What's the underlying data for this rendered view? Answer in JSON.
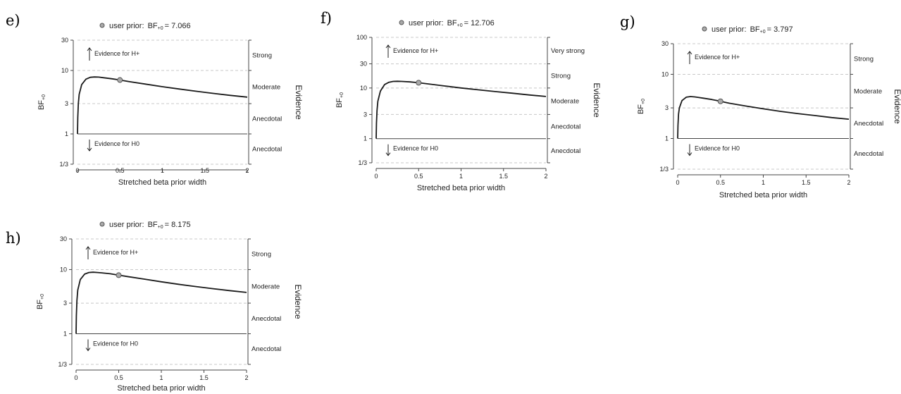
{
  "chart_data": [
    {
      "panel": "e)",
      "type": "line",
      "title_prefix": "user prior:",
      "title_bf": "BF",
      "title_sub": "+0",
      "title_value": "= 7.066",
      "xlabel": "Stretched beta prior width",
      "ylabel": "BF",
      "ylabel_sub": "+0",
      "right_axis_title": "Evidence",
      "xlim": [
        0,
        2
      ],
      "xticks": [
        "0",
        "0.5",
        "1",
        "1.5",
        "2"
      ],
      "ylim": [
        0.333,
        30
      ],
      "yscale": "log",
      "yticks": [
        "1/3",
        "1",
        "3",
        "10",
        "30"
      ],
      "ytick_values": [
        0.3333,
        1,
        3,
        10,
        30
      ],
      "gridlines": [
        0.3333,
        3,
        10,
        30
      ],
      "right_boundaries": [
        0.3333,
        1,
        3,
        10,
        30
      ],
      "right_labels": [
        {
          "text": "Strong",
          "lo": 10,
          "hi": 30
        },
        {
          "text": "Moderate",
          "lo": 3,
          "hi": 10
        },
        {
          "text": "Anecdotal",
          "lo": 1,
          "hi": 3
        },
        {
          "text": "Anecdotal",
          "lo": 0.3333,
          "hi": 1
        }
      ],
      "evidence_h1": "Evidence for H+",
      "evidence_h0": "Evidence for H0",
      "x": [
        0,
        0.003,
        0.01,
        0.02,
        0.05,
        0.1,
        0.15,
        0.2,
        0.25,
        0.3,
        0.4,
        0.5,
        0.6,
        0.8,
        1.0,
        1.2,
        1.4,
        1.6,
        1.8,
        2.0
      ],
      "y": [
        1,
        1.8,
        3.0,
        4.2,
        6.0,
        7.3,
        7.8,
        7.9,
        7.85,
        7.7,
        7.4,
        7.066,
        6.7,
        6.1,
        5.55,
        5.1,
        4.7,
        4.35,
        4.05,
        3.8
      ],
      "user_prior_point": {
        "x": 0.5,
        "y": 7.066
      }
    },
    {
      "panel": "f)",
      "type": "line",
      "title_prefix": "user prior:",
      "title_bf": "BF",
      "title_sub": "+0",
      "title_value": "= 12.706",
      "xlabel": "Stretched beta prior width",
      "ylabel": "BF",
      "ylabel_sub": "+0",
      "right_axis_title": "Evidence",
      "xlim": [
        0,
        2
      ],
      "xticks": [
        "0",
        "0.5",
        "1",
        "1.5",
        "2"
      ],
      "ylim": [
        0.333,
        100
      ],
      "yscale": "log",
      "yticks": [
        "1/3",
        "1",
        "3",
        "10",
        "30",
        "100"
      ],
      "ytick_values": [
        0.3333,
        1,
        3,
        10,
        30,
        100
      ],
      "gridlines": [
        0.3333,
        3,
        10,
        30,
        100
      ],
      "right_boundaries": [
        0.3333,
        1,
        3,
        10,
        30,
        100
      ],
      "right_labels": [
        {
          "text": "Very strong",
          "lo": 30,
          "hi": 100
        },
        {
          "text": "Strong",
          "lo": 10,
          "hi": 30
        },
        {
          "text": "Moderate",
          "lo": 3,
          "hi": 10
        },
        {
          "text": "Anecdotal",
          "lo": 1,
          "hi": 3
        },
        {
          "text": "Anecdotal",
          "lo": 0.3333,
          "hi": 1
        }
      ],
      "evidence_h1": "Evidence for H+",
      "evidence_h0": "Evidence for H0",
      "x": [
        0,
        0.003,
        0.01,
        0.02,
        0.05,
        0.1,
        0.15,
        0.2,
        0.25,
        0.3,
        0.4,
        0.5,
        0.6,
        0.8,
        1.0,
        1.2,
        1.4,
        1.6,
        1.8,
        2.0
      ],
      "y": [
        1,
        2.0,
        3.6,
        5.5,
        8.7,
        11.7,
        13.0,
        13.5,
        13.6,
        13.5,
        13.2,
        12.706,
        12.1,
        11.0,
        10.0,
        9.2,
        8.5,
        7.9,
        7.3,
        6.8
      ],
      "user_prior_point": {
        "x": 0.5,
        "y": 12.706
      }
    },
    {
      "panel": "g)",
      "type": "line",
      "title_prefix": "user prior:",
      "title_bf": "BF",
      "title_sub": "+0",
      "title_value": "= 3.797",
      "xlabel": "Stretched beta prior width",
      "ylabel": "BF",
      "ylabel_sub": "+0",
      "right_axis_title": "Evidence",
      "xlim": [
        0,
        2
      ],
      "xticks": [
        "0",
        "0.5",
        "1",
        "1.5",
        "2"
      ],
      "ylim": [
        0.333,
        30
      ],
      "yscale": "log",
      "yticks": [
        "1/3",
        "1",
        "3",
        "10",
        "30"
      ],
      "ytick_values": [
        0.3333,
        1,
        3,
        10,
        30
      ],
      "gridlines": [
        0.3333,
        3,
        10,
        30
      ],
      "right_boundaries": [
        0.3333,
        1,
        3,
        10,
        30
      ],
      "right_labels": [
        {
          "text": "Strong",
          "lo": 10,
          "hi": 30
        },
        {
          "text": "Moderate",
          "lo": 3,
          "hi": 10
        },
        {
          "text": "Anecdotal",
          "lo": 1,
          "hi": 3
        },
        {
          "text": "Anecdotal",
          "lo": 0.3333,
          "hi": 1
        }
      ],
      "evidence_h1": "Evidence for H+",
      "evidence_h0": "Evidence for H0",
      "x": [
        0,
        0.003,
        0.01,
        0.02,
        0.05,
        0.1,
        0.15,
        0.2,
        0.25,
        0.3,
        0.4,
        0.5,
        0.6,
        0.8,
        1.0,
        1.2,
        1.4,
        1.6,
        1.8,
        2.0
      ],
      "y": [
        1,
        1.6,
        2.4,
        3.0,
        3.9,
        4.4,
        4.5,
        4.45,
        4.35,
        4.25,
        4.05,
        3.797,
        3.55,
        3.2,
        2.9,
        2.65,
        2.45,
        2.28,
        2.12,
        2.0
      ],
      "user_prior_point": {
        "x": 0.5,
        "y": 3.797
      }
    },
    {
      "panel": "h)",
      "type": "line",
      "title_prefix": "user prior:",
      "title_bf": "BF",
      "title_sub": "+0",
      "title_value": "= 8.175",
      "xlabel": "Stretched beta prior width",
      "ylabel": "BF",
      "ylabel_sub": "+0",
      "right_axis_title": "Evidence",
      "xlim": [
        0,
        2
      ],
      "xticks": [
        "0",
        "0.5",
        "1",
        "1.5",
        "2"
      ],
      "ylim": [
        0.333,
        30
      ],
      "yscale": "log",
      "yticks": [
        "1/3",
        "1",
        "3",
        "10",
        "30"
      ],
      "ytick_values": [
        0.3333,
        1,
        3,
        10,
        30
      ],
      "gridlines": [
        0.3333,
        3,
        10,
        30
      ],
      "right_boundaries": [
        0.3333,
        1,
        3,
        10,
        30
      ],
      "right_labels": [
        {
          "text": "Strong",
          "lo": 10,
          "hi": 30
        },
        {
          "text": "Moderate",
          "lo": 3,
          "hi": 10
        },
        {
          "text": "Anecdotal",
          "lo": 1,
          "hi": 3
        },
        {
          "text": "Anecdotal",
          "lo": 0.3333,
          "hi": 1
        }
      ],
      "evidence_h1": "Evidence for H+",
      "evidence_h0": "Evidence for H0",
      "x": [
        0,
        0.003,
        0.01,
        0.02,
        0.05,
        0.1,
        0.15,
        0.2,
        0.25,
        0.3,
        0.4,
        0.5,
        0.6,
        0.8,
        1.0,
        1.2,
        1.4,
        1.6,
        1.8,
        2.0
      ],
      "y": [
        1,
        1.9,
        3.3,
        4.8,
        7.0,
        8.5,
        9.0,
        9.1,
        9.0,
        8.9,
        8.6,
        8.175,
        7.8,
        7.1,
        6.45,
        5.9,
        5.45,
        5.05,
        4.7,
        4.4
      ],
      "user_prior_point": {
        "x": 0.5,
        "y": 8.175
      }
    }
  ],
  "colors": {
    "curve": "#1a1a1a",
    "grid": "#c8c8c8",
    "axis": "#444444",
    "point_fill": "#aaaaaa",
    "point_stroke": "#555555"
  }
}
